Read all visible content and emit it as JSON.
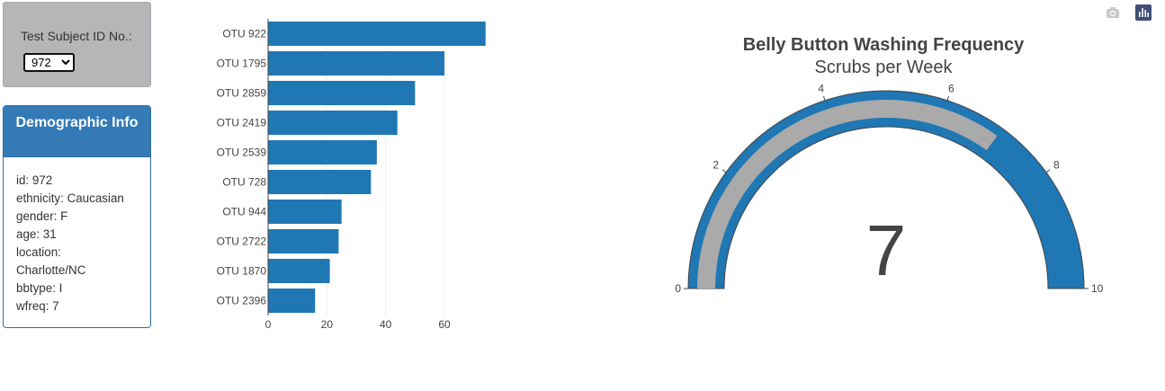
{
  "selector": {
    "label": "Test Subject ID No.:",
    "selected": "972"
  },
  "demographics": {
    "title": "Demographic Info",
    "lines": [
      "id: 972",
      "ethnicity: Caucasian",
      "gender: F",
      "age: 31",
      "location:",
      "Charlotte/NC",
      "bbtype: I",
      "wfreq: 7"
    ]
  },
  "modebar": {
    "buttons": [
      {
        "icon": "camera-icon"
      },
      {
        "icon": "plotly-logo-icon"
      }
    ]
  },
  "colors": {
    "bar": "#1f77b4",
    "gauge_bar": "#aaaaaa",
    "gauge_bg": "#1f77b4",
    "panel_header": "#337ab7"
  },
  "chart_data": [
    {
      "type": "bar",
      "orientation": "horizontal",
      "categories": [
        "OTU 922",
        "OTU 1795",
        "OTU 2859",
        "OTU 2419",
        "OTU 2539",
        "OTU 728",
        "OTU 944",
        "OTU 2722",
        "OTU 1870",
        "OTU 2396"
      ],
      "values": [
        74,
        60,
        50,
        44,
        37,
        35,
        25,
        24,
        21,
        16
      ],
      "xlim": [
        0,
        75
      ],
      "xticks": [
        0,
        20,
        40,
        60
      ],
      "grid": true
    },
    {
      "type": "gauge",
      "title": "Belly Button Washing Frequency",
      "subtitle": "Scrubs per Week",
      "value": 7,
      "range": [
        0,
        10
      ],
      "ticks": [
        0,
        2,
        4,
        6,
        8,
        10
      ]
    }
  ]
}
